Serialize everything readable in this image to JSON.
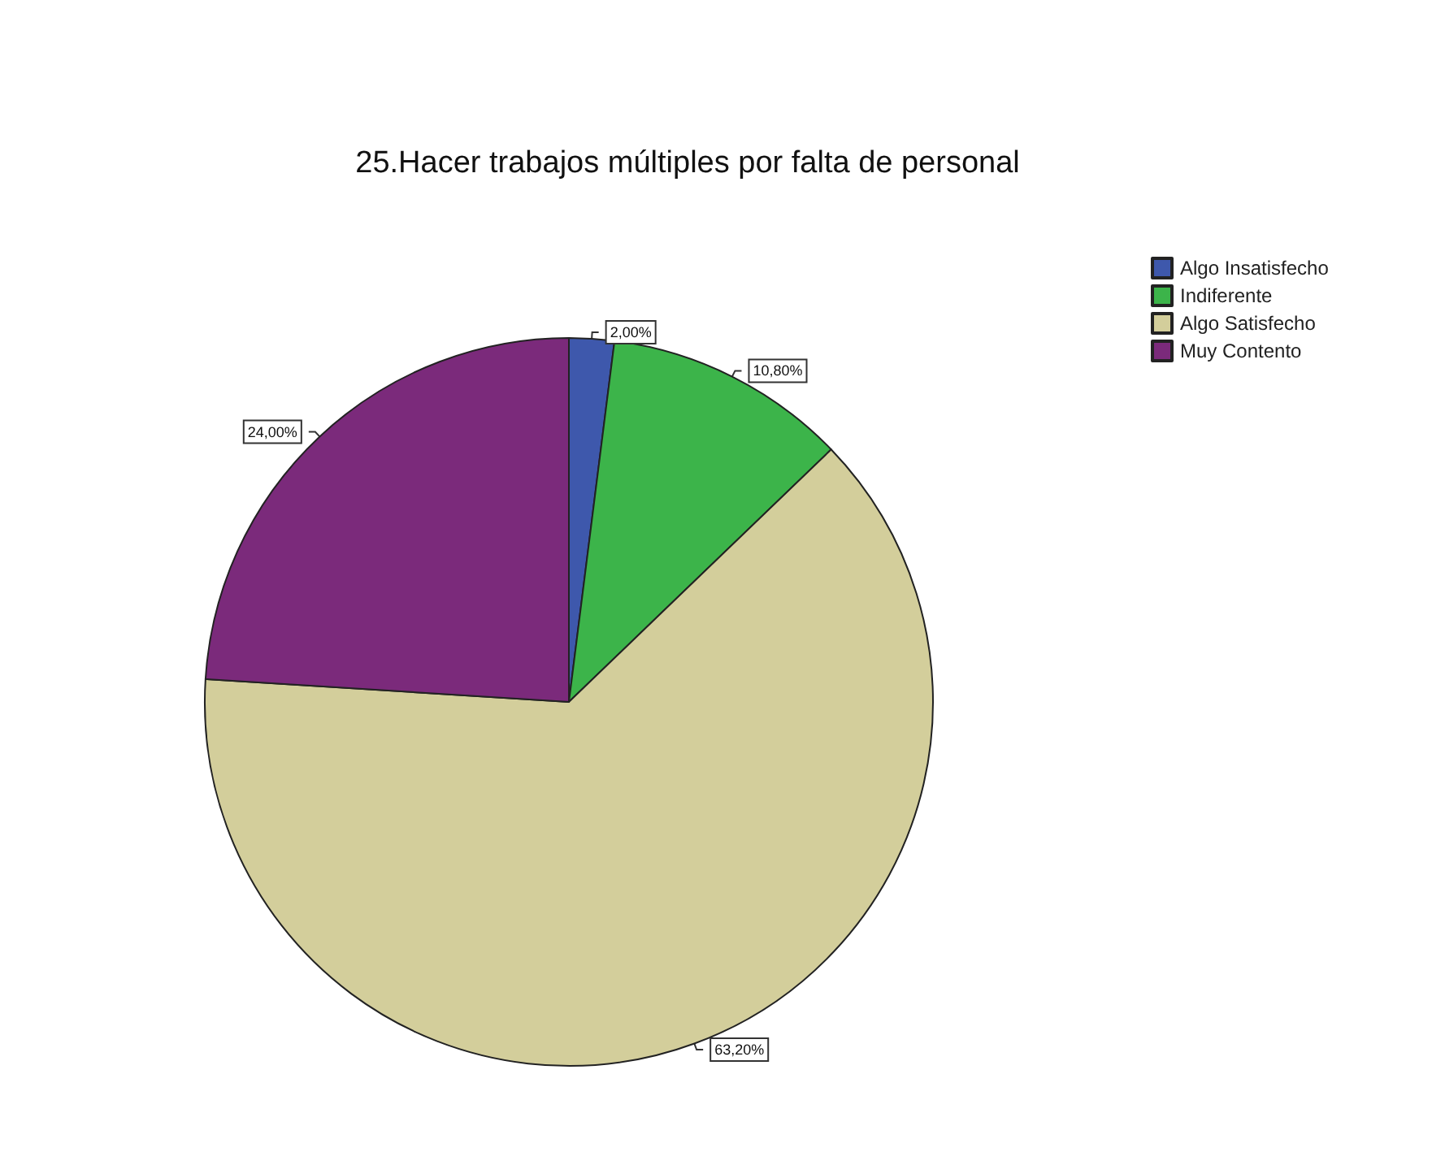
{
  "chart_data": {
    "type": "pie",
    "title": "25.Hacer trabajos múltiples por falta de personal",
    "categories": [
      "Algo Insatisfecho",
      "Indiferente",
      "Algo Satisfecho",
      "Muy Contento"
    ],
    "values": [
      2,
      10.8,
      63.2,
      24
    ],
    "value_labels": [
      "2,00%",
      "10,80%",
      "63,20%",
      "24,00%"
    ],
    "colors": [
      "#3e58ac",
      "#3cb44a",
      "#d3ce9b",
      "#7b2a7b"
    ],
    "legend": "top right"
  }
}
